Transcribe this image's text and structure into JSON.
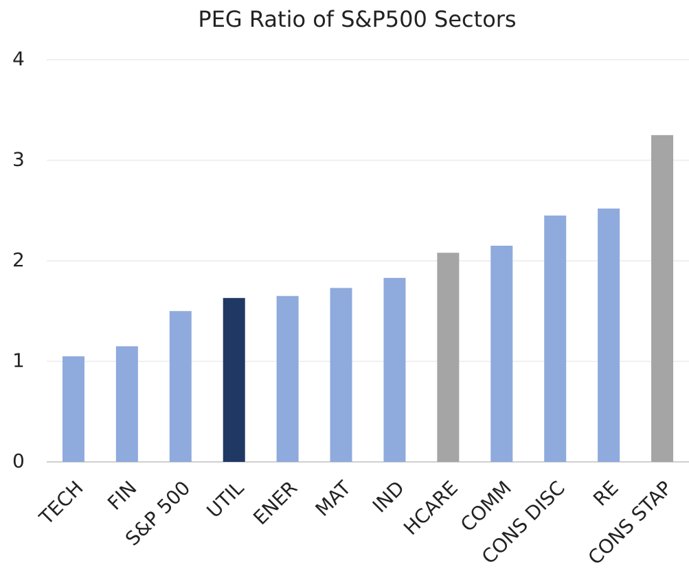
{
  "chart_data": {
    "type": "bar",
    "title": "PEG Ratio of S&P500 Sectors",
    "categories": [
      "TECH",
      "FIN",
      "S&P 500",
      "UTIL",
      "ENER",
      "MAT",
      "IND",
      "HCARE",
      "COMM",
      "CONS DISC",
      "RE",
      "CONS STAP"
    ],
    "values": [
      1.05,
      1.15,
      1.5,
      1.63,
      1.65,
      1.73,
      1.83,
      2.08,
      2.15,
      2.45,
      2.52,
      3.25
    ],
    "colors": [
      "#8faadc",
      "#8faadc",
      "#8faadc",
      "#203864",
      "#8faadc",
      "#8faadc",
      "#8faadc",
      "#a5a5a5",
      "#8faadc",
      "#8faadc",
      "#8faadc",
      "#a5a5a5"
    ],
    "ylim": [
      0,
      4
    ],
    "yticks": [
      0,
      1,
      2,
      3,
      4
    ],
    "grid": true
  }
}
